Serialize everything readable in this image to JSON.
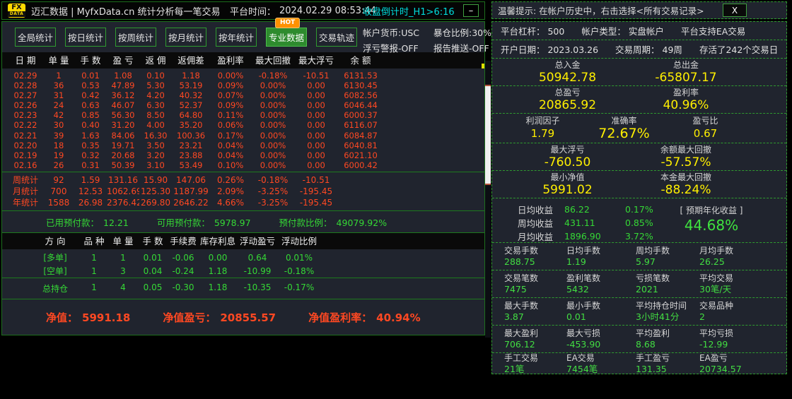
{
  "colors": {
    "panel": "#20242e",
    "orange": "#ff4822",
    "green": "#35d835",
    "yellow": "#ffef00",
    "cyan": "#00dcdc",
    "hot": "#ff9100",
    "tab-active": "#2e8b2e",
    "dash-green": "#2f9b2f"
  },
  "top_bar": {
    "logo_top": "FX",
    "logo_bottom": "DATA",
    "title": "迈汇数据 | MyfxData.cn  统计分析每一笔交易",
    "time_label": "平台时间：",
    "time_value": "2024.02.29 08:53:44",
    "countdown": "收盘倒计时_H1>6:16",
    "minimize_label": "–"
  },
  "tabs": {
    "items": [
      "全局统计",
      "按日统计",
      "按周统计",
      "按月统计",
      "按年统计",
      "专业数据",
      "交易轨迹"
    ],
    "active_index": 5,
    "hot_badge": "HOT"
  },
  "account_info": {
    "currency": "帐户货币:USC",
    "blowup": "暴仓比例:30%",
    "float_alert": "浮亏警报-OFF",
    "report_push": "报告推送-OFF"
  },
  "daily_table": {
    "headers": [
      "日 期",
      "单 量",
      "手 数",
      "盈 亏",
      "返 佣",
      "返佣差",
      "盈利率",
      "最大回撤",
      "最大浮亏",
      "余 额"
    ],
    "rows": [
      [
        "02.29",
        "1",
        "0.01",
        "1.08",
        "0.10",
        "1.18",
        "0.00%",
        "-0.18%",
        "-10.51",
        "6131.53"
      ],
      [
        "02.28",
        "36",
        "0.53",
        "47.89",
        "5.30",
        "53.19",
        "0.09%",
        "0.00%",
        "0.00",
        "6130.45"
      ],
      [
        "02.27",
        "31",
        "0.42",
        "36.12",
        "4.20",
        "40.32",
        "0.07%",
        "0.00%",
        "0.00",
        "6082.56"
      ],
      [
        "02.26",
        "24",
        "0.63",
        "46.07",
        "6.30",
        "52.37",
        "0.09%",
        "0.00%",
        "0.00",
        "6046.44"
      ],
      [
        "02.23",
        "42",
        "0.85",
        "56.30",
        "8.50",
        "64.80",
        "0.11%",
        "0.00%",
        "0.00",
        "6000.37"
      ],
      [
        "02.22",
        "30",
        "0.40",
        "31.20",
        "4.00",
        "35.20",
        "0.06%",
        "0.00%",
        "0.00",
        "6116.07"
      ],
      [
        "02.21",
        "39",
        "1.63",
        "84.06",
        "16.30",
        "100.36",
        "0.17%",
        "0.00%",
        "0.00",
        "6084.87"
      ],
      [
        "02.20",
        "18",
        "0.35",
        "19.71",
        "3.50",
        "23.21",
        "0.04%",
        "0.00%",
        "0.00",
        "6040.81"
      ],
      [
        "02.19",
        "19",
        "0.32",
        "20.68",
        "3.20",
        "23.88",
        "0.04%",
        "0.00%",
        "0.00",
        "6021.10"
      ],
      [
        "02.16",
        "26",
        "0.31",
        "50.39",
        "3.10",
        "53.49",
        "0.10%",
        "0.00%",
        "0.00",
        "6000.42"
      ]
    ],
    "summary_rows": [
      [
        "周统计",
        "92",
        "1.59",
        "131.16",
        "15.90",
        "147.06",
        "0.26%",
        "-0.18%",
        "-10.51",
        ""
      ],
      [
        "月统计",
        "700",
        "12.53",
        "1062.69",
        "125.30",
        "1187.99",
        "2.09%",
        "-3.25%",
        "-195.45",
        ""
      ],
      [
        "年统计",
        "1588",
        "26.98",
        "2376.42",
        "269.80",
        "2646.22",
        "4.66%",
        "-3.25%",
        "-195.45",
        ""
      ]
    ]
  },
  "margin_info": {
    "used_label": "已用预付款：",
    "used_value": "12.21",
    "available_label": "可用预付款：",
    "available_value": "5978.97",
    "ratio_label": "预付款比例：",
    "ratio_value": "49079.92%"
  },
  "position_table": {
    "headers": [
      "方 向",
      "品 种",
      "单 量",
      "手 数",
      "手续费",
      "库存利息",
      "浮动盈亏",
      "浮动比例"
    ],
    "rows": [
      [
        "[多单]",
        "1",
        "1",
        "0.01",
        "-0.06",
        "0.00",
        "0.64",
        "0.01%"
      ],
      [
        "[空单]",
        "1",
        "3",
        "0.04",
        "-0.24",
        "1.18",
        "-10.99",
        "-0.18%"
      ]
    ],
    "total_row": [
      "总持仓",
      "1",
      "4",
      "0.05",
      "-0.30",
      "1.18",
      "-10.35",
      "-0.17%"
    ]
  },
  "equity_bar": {
    "equity_label": "净值：",
    "equity_value": "5991.18",
    "pl_label": "净值盈亏：",
    "pl_value": "20855.57",
    "rate_label": "净值盈利率：",
    "rate_value": "40.94%"
  },
  "right_panel": {
    "tip": "温馨提示: 在帐户历史中，右击选择<所有交易记录>",
    "close_label": "X",
    "info_line1": [
      "平台杠杆： 500",
      "帐户类型： 实盘帐户",
      "平台支持EA交易"
    ],
    "info_line2": [
      "开户日期： 2023.03.26",
      "交易周期： 49周",
      "存活了242个交易日"
    ],
    "deposit_section": [
      {
        "label": "总入金",
        "value": "50942.78"
      },
      {
        "label": "总出金",
        "value": "-65807.17"
      }
    ],
    "profit_section": [
      {
        "label": "总盈亏",
        "value": "20865.92"
      },
      {
        "label": "盈利率",
        "value": "40.96%"
      }
    ],
    "factor_section": [
      {
        "label": "利润因子",
        "value": "1.79"
      },
      {
        "label": "准确率",
        "value": "72.67%",
        "big": true
      },
      {
        "label": "盈亏比",
        "value": "0.67"
      }
    ],
    "drawdown_section": [
      {
        "label": "最大浮亏",
        "value": "-760.50"
      },
      {
        "label": "余额最大回撤",
        "value": "-57.57%"
      }
    ],
    "minequity_section": [
      {
        "label": "最小净值",
        "value": "5991.02"
      },
      {
        "label": "本金最大回撤",
        "value": "-88.24%"
      }
    ],
    "returns": {
      "rows": [
        {
          "label": "日均收益",
          "value": "86.22",
          "pct": "0.17%"
        },
        {
          "label": "周均收益",
          "value": "431.11",
          "pct": "0.85%"
        },
        {
          "label": "月均收益",
          "value": "1896.90",
          "pct": "3.72%"
        }
      ],
      "annual_label": "[ 预期年化收益 ]",
      "annual_value": "44.68%"
    },
    "lots_section": [
      {
        "label": "交易手数",
        "value": "288.75"
      },
      {
        "label": "日均手数",
        "value": "1.19"
      },
      {
        "label": "周均手数",
        "value": "5.97"
      },
      {
        "label": "月均手数",
        "value": "26.25"
      }
    ],
    "trades_section": [
      {
        "label": "交易笔数",
        "value": "7475"
      },
      {
        "label": "盈利笔数",
        "value": "5432"
      },
      {
        "label": "亏损笔数",
        "value": "2021"
      },
      {
        "label": "平均交易",
        "value": "30笔/天"
      }
    ],
    "size_section": [
      {
        "label": "最大手数",
        "value": "3.87"
      },
      {
        "label": "最小手数",
        "value": "0.01"
      },
      {
        "label": "平均持仓时间",
        "value": "3小时41分"
      },
      {
        "label": "交易品种",
        "value": "2"
      }
    ],
    "extremes_section": [
      {
        "label": "最大盈利",
        "value": "706.12"
      },
      {
        "label": "最大亏损",
        "value": "-453.90"
      },
      {
        "label": "平均盈利",
        "value": "8.68"
      },
      {
        "label": "平均亏损",
        "value": "-12.99"
      }
    ],
    "manual_ea_section": [
      {
        "label": "手工交易",
        "value": "21笔"
      },
      {
        "label": "EA交易",
        "value": "7454笔"
      },
      {
        "label": "手工盈亏",
        "value": "131.35"
      },
      {
        "label": "EA盈亏",
        "value": "20734.57"
      }
    ]
  }
}
